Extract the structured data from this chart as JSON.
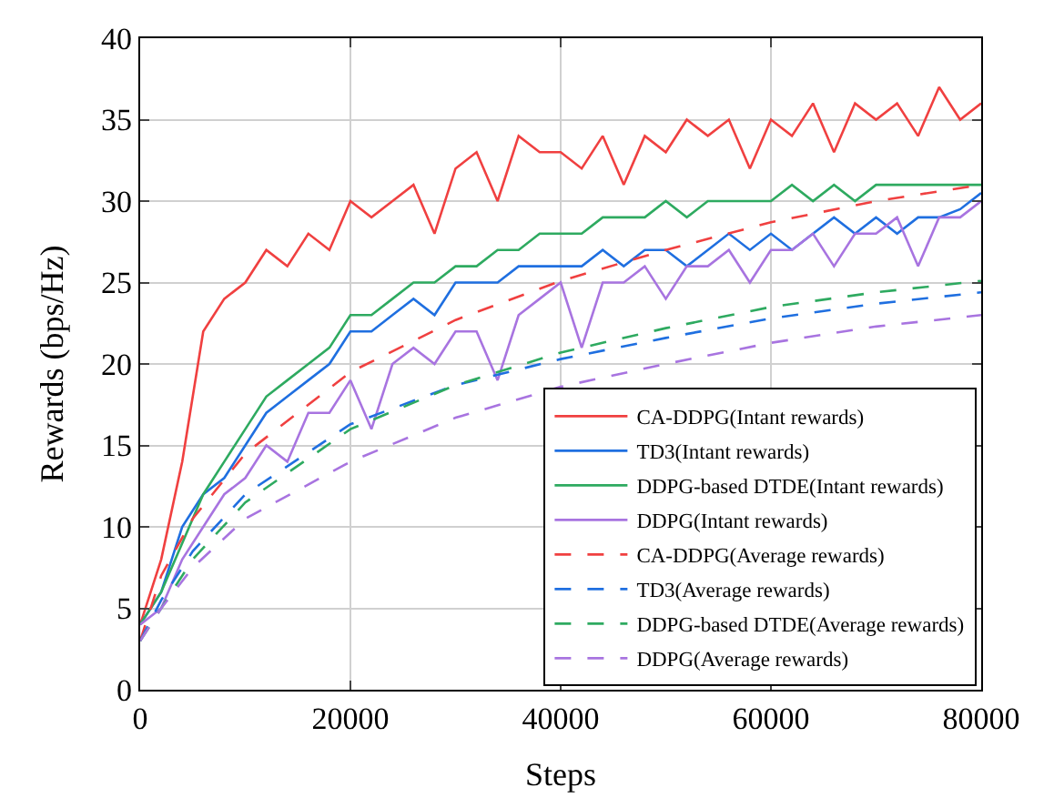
{
  "chart_data": {
    "type": "line",
    "xlabel": "Steps",
    "ylabel": "Rewards (bps/Hz)",
    "xlim": [
      0,
      80000
    ],
    "xticks": [
      0,
      20000,
      40000,
      60000,
      80000
    ],
    "ylim": [
      0,
      40
    ],
    "yticks": [
      0,
      5,
      10,
      15,
      20,
      25,
      30,
      35,
      40
    ],
    "grid": true,
    "legend": "bottom right",
    "marker": "none",
    "x": [
      0,
      2000,
      4000,
      6000,
      8000,
      10000,
      12000,
      14000,
      16000,
      18000,
      20000,
      22000,
      24000,
      26000,
      28000,
      30000,
      32000,
      34000,
      36000,
      38000,
      40000,
      42000,
      44000,
      46000,
      48000,
      50000,
      52000,
      54000,
      56000,
      58000,
      60000,
      62000,
      64000,
      66000,
      68000,
      70000,
      72000,
      74000,
      76000,
      78000,
      80000
    ],
    "series": [
      {
        "name": "CA-DDPG(Intant rewards)",
        "color": "#f04040",
        "line_style": "solid",
        "values": [
          4,
          8,
          14,
          22,
          24,
          25,
          27,
          26,
          28,
          27,
          30,
          29,
          30,
          31,
          28,
          32,
          33,
          30,
          34,
          33,
          33,
          32,
          34,
          31,
          34,
          33,
          35,
          34,
          35,
          32,
          35,
          34,
          36,
          33,
          36,
          35,
          36,
          34,
          37,
          35,
          36
        ]
      },
      {
        "name": "TD3(Intant rewards)",
        "color": "#1f6fe0",
        "line_style": "solid",
        "values": [
          4,
          6,
          10,
          12,
          13,
          15,
          17,
          18,
          19,
          20,
          22,
          22,
          23,
          24,
          23,
          25,
          25,
          25,
          26,
          26,
          26,
          26,
          27,
          26,
          27,
          27,
          26,
          27,
          28,
          27,
          28,
          27,
          28,
          29,
          28,
          29,
          28,
          29,
          29,
          29.5,
          30.5
        ]
      },
      {
        "name": "DDPG-based DTDE(Intant rewards)",
        "color": "#2eaa60",
        "line_style": "solid",
        "values": [
          4,
          6,
          9,
          12,
          14,
          16,
          18,
          19,
          20,
          21,
          23,
          23,
          24,
          25,
          25,
          26,
          26,
          27,
          27,
          28,
          28,
          28,
          29,
          29,
          29,
          30,
          29,
          30,
          30,
          30,
          30,
          31,
          30,
          31,
          30,
          31,
          31,
          31,
          31,
          31,
          31
        ]
      },
      {
        "name": "DDPG(Intant rewards)",
        "color": "#a874e0",
        "line_style": "solid",
        "values": [
          4,
          5,
          8,
          10,
          12,
          13,
          15,
          14,
          17,
          17,
          19,
          16,
          20,
          21,
          20,
          22,
          22,
          19,
          23,
          24,
          25,
          21,
          25,
          25,
          26,
          24,
          26,
          26,
          27,
          25,
          27,
          27,
          28,
          26,
          28,
          28,
          29,
          26,
          29,
          29,
          30
        ]
      },
      {
        "name": "CA-DDPG(Average rewards)",
        "color": "#f04040",
        "line_style": "dashed",
        "x": [
          0,
          2000,
          5000,
          10000,
          20000,
          30000,
          40000,
          50000,
          60000,
          70000,
          80000
        ],
        "values": [
          3,
          7,
          10.5,
          14.5,
          19.5,
          22.7,
          25.1,
          27,
          28.7,
          30,
          31
        ]
      },
      {
        "name": "TD3(Average rewards)",
        "color": "#1f6fe0",
        "line_style": "dashed",
        "x": [
          0,
          2000,
          5000,
          10000,
          20000,
          30000,
          40000,
          50000,
          60000,
          70000,
          80000
        ],
        "values": [
          3,
          5.5,
          8.5,
          12,
          16.3,
          18.7,
          20.3,
          21.6,
          22.8,
          23.7,
          24.4
        ]
      },
      {
        "name": "DDPG-based DTDE(Average rewards)",
        "color": "#2eaa60",
        "line_style": "dashed",
        "x": [
          0,
          2000,
          5000,
          10000,
          20000,
          30000,
          40000,
          50000,
          60000,
          70000,
          80000
        ],
        "values": [
          3,
          5,
          8,
          11.5,
          16,
          18.7,
          20.7,
          22.2,
          23.5,
          24.4,
          25.1
        ]
      },
      {
        "name": "DDPG(Average rewards)",
        "color": "#a874e0",
        "line_style": "dashed",
        "x": [
          0,
          2000,
          5000,
          10000,
          20000,
          30000,
          40000,
          50000,
          60000,
          70000,
          80000
        ],
        "values": [
          3,
          5,
          7.5,
          10.5,
          14,
          16.7,
          18.6,
          20,
          21.3,
          22.3,
          23
        ]
      }
    ]
  }
}
